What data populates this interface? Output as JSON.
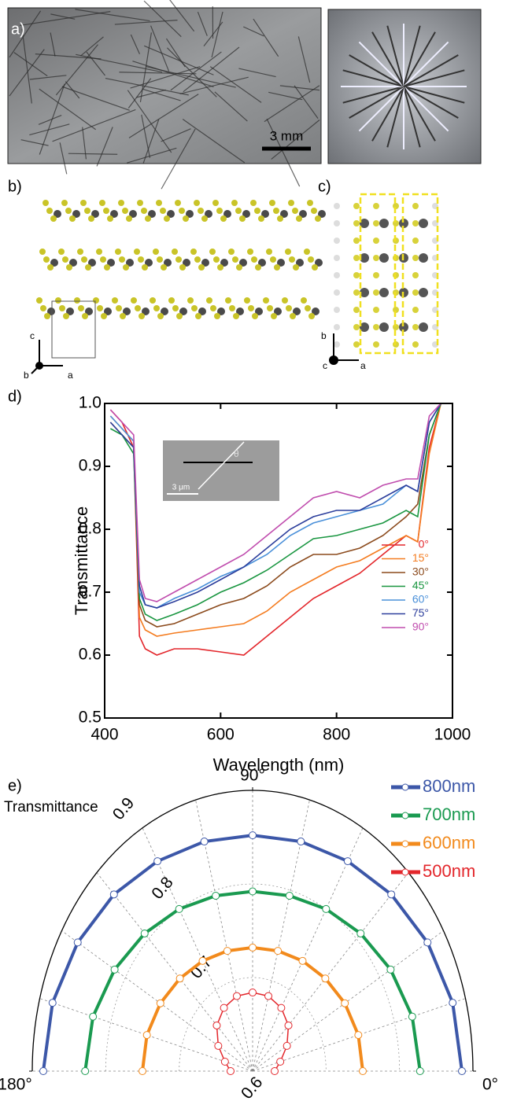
{
  "figure": {
    "panel_a_label": "a)",
    "scale_bar": "3 mm",
    "panel_b_label": "b)",
    "panel_c_label": "c)",
    "axes_b": [
      "c",
      "b",
      "a"
    ],
    "axes_c": [
      "b",
      "c",
      "a"
    ]
  },
  "chart_data": [
    {
      "type": "line",
      "panel_label": "d)",
      "x_label": "Wavelength (nm)",
      "y_label": "Transmittance",
      "inset_scale": "3 μm",
      "inset_angle": "θ",
      "x": [
        410,
        430,
        450,
        460,
        470,
        490,
        520,
        560,
        600,
        640,
        680,
        720,
        760,
        800,
        840,
        880,
        920,
        940,
        960,
        980
      ],
      "xlim": [
        400,
        1000
      ],
      "xticks": [
        400,
        600,
        800,
        1000
      ],
      "ylim": [
        0.5,
        1.0
      ],
      "yticks": [
        0.5,
        0.6,
        0.7,
        0.8,
        0.9,
        {
          "value": 1,
          "label": "1.0"
        }
      ],
      "legend": "lower-right",
      "series": [
        {
          "name": "0°",
          "color": "#e3262b",
          "values": [
            0.99,
            0.97,
            0.93,
            0.63,
            0.61,
            0.6,
            0.61,
            0.61,
            0.605,
            0.6,
            0.63,
            0.66,
            0.69,
            0.71,
            0.73,
            0.76,
            0.79,
            0.78,
            0.93,
            1.0
          ]
        },
        {
          "name": "15°",
          "color": "#f47c20",
          "values": [
            0.98,
            0.96,
            0.94,
            0.66,
            0.64,
            0.63,
            0.635,
            0.64,
            0.645,
            0.65,
            0.67,
            0.7,
            0.72,
            0.74,
            0.75,
            0.77,
            0.79,
            0.78,
            0.92,
            1.0
          ]
        },
        {
          "name": "30°",
          "color": "#8b4a1c",
          "values": [
            0.97,
            0.95,
            0.93,
            0.68,
            0.655,
            0.645,
            0.65,
            0.665,
            0.68,
            0.69,
            0.71,
            0.74,
            0.76,
            0.76,
            0.77,
            0.79,
            0.82,
            0.84,
            0.95,
            1.0
          ]
        },
        {
          "name": "45°",
          "color": "#1a9641",
          "values": [
            0.96,
            0.95,
            0.92,
            0.69,
            0.665,
            0.655,
            0.665,
            0.68,
            0.7,
            0.715,
            0.735,
            0.76,
            0.785,
            0.79,
            0.8,
            0.81,
            0.83,
            0.82,
            0.95,
            1.0
          ]
        },
        {
          "name": "60°",
          "color": "#4a90d9",
          "values": [
            0.98,
            0.96,
            0.94,
            0.7,
            0.68,
            0.675,
            0.69,
            0.705,
            0.725,
            0.74,
            0.76,
            0.79,
            0.81,
            0.82,
            0.83,
            0.84,
            0.87,
            0.86,
            0.97,
            1.0
          ]
        },
        {
          "name": "75°",
          "color": "#2c3e9c",
          "values": [
            0.97,
            0.95,
            0.93,
            0.71,
            0.68,
            0.675,
            0.685,
            0.7,
            0.72,
            0.74,
            0.77,
            0.8,
            0.82,
            0.83,
            0.83,
            0.85,
            0.87,
            0.86,
            0.97,
            1.0
          ]
        },
        {
          "name": "90°",
          "color": "#c04dae",
          "values": [
            0.99,
            0.97,
            0.95,
            0.72,
            0.69,
            0.685,
            0.7,
            0.72,
            0.74,
            0.76,
            0.79,
            0.82,
            0.85,
            0.86,
            0.85,
            0.87,
            0.88,
            0.88,
            0.98,
            1.0
          ]
        }
      ]
    },
    {
      "type": "polar",
      "panel_label": "e)",
      "r_label": "Transmittance",
      "theta": [
        0,
        15,
        30,
        45,
        60,
        75,
        90,
        105,
        120,
        135,
        150,
        165,
        180
      ],
      "thetaticks": [
        {
          "value": 0,
          "label": "0°"
        },
        {
          "value": 90,
          "label": "90°"
        },
        {
          "value": 180,
          "label": "180°"
        }
      ],
      "rlim": [
        0.6,
        0.9
      ],
      "rticks": [
        0.6,
        0.7,
        0.8,
        0.9
      ],
      "grid": true,
      "legend": "upper-right",
      "series": [
        {
          "name": "800nm",
          "color": "#3c57a8",
          "values": [
            0.885,
            0.882,
            0.875,
            0.867,
            0.859,
            0.854,
            0.852,
            0.854,
            0.859,
            0.867,
            0.875,
            0.882,
            0.885
          ]
        },
        {
          "name": "700nm",
          "color": "#1a9a50",
          "values": [
            0.828,
            0.825,
            0.817,
            0.808,
            0.8,
            0.794,
            0.792,
            0.794,
            0.8,
            0.808,
            0.817,
            0.825,
            0.828
          ]
        },
        {
          "name": "600nm",
          "color": "#f28a1c",
          "values": [
            0.75,
            0.749,
            0.745,
            0.74,
            0.736,
            0.733,
            0.732,
            0.733,
            0.736,
            0.74,
            0.745,
            0.749,
            0.75
          ]
        },
        {
          "name": "500nm",
          "color": "#e3262b",
          "values": [
            0.63,
            0.639,
            0.654,
            0.669,
            0.678,
            0.683,
            0.684,
            0.683,
            0.678,
            0.669,
            0.654,
            0.639,
            0.63
          ]
        }
      ]
    }
  ]
}
